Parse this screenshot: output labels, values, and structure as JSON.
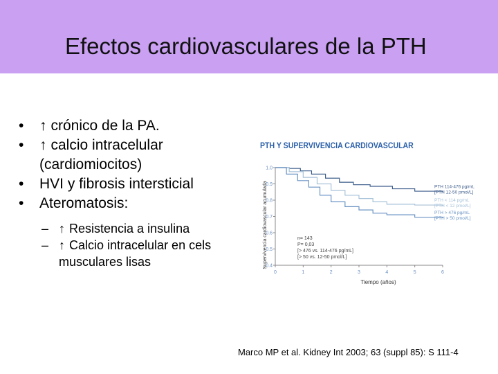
{
  "slide": {
    "title": "Efectos cardiovasculares de la PTH",
    "bullets": [
      {
        "icon": "up-arrow-icon",
        "text": "crónico de la PA."
      },
      {
        "icon": "up-arrow-icon",
        "text": "calcio intracelular (cardiomiocitos)"
      },
      {
        "icon": null,
        "text": "HVI y fibrosis intersticial"
      },
      {
        "icon": null,
        "text": "Ateromatosis:"
      }
    ],
    "subbullets": [
      {
        "icon": "up-arrow-icon",
        "text": "Resistencia a insulina"
      },
      {
        "icon": "up-arrow-icon",
        "text": "Calcio intracelular en cels musculares lisas"
      }
    ],
    "citation": "Marco MP et al. Kidney Int 2003; 63 (suppl 85): S 111-4",
    "bullet_glyph": "•",
    "dash_glyph": "–",
    "arrow_glyph": "↑"
  },
  "chart_data": {
    "type": "line",
    "title": "PTH Y SUPERVIVENCIA CARDIOVASCULAR",
    "xlabel": "Tiempo (años)",
    "ylabel": "Supervivencia cardiovascular acumulada",
    "xlim": [
      0,
      6
    ],
    "ylim": [
      0.4,
      1.0
    ],
    "x_ticks": [
      "0",
      "1",
      "2",
      "3",
      "4",
      "5",
      "6"
    ],
    "y_ticks": [
      "0.4",
      "0.5",
      "0.6",
      "0.7",
      "0.8",
      "0.9",
      "1.0"
    ],
    "colors": {
      "line1": "#3f5e8c",
      "line2": "#a7c2d8",
      "line3": "#6a93c4",
      "title": "#2b5fa8",
      "axis": "#888888"
    },
    "series": [
      {
        "name": "PTH 114-476 pg/mL [PTH 12-50 pmol/L]",
        "color": "#3f5e8c",
        "points": [
          [
            0,
            1.0
          ],
          [
            0.5,
            0.995
          ],
          [
            0.9,
            0.98
          ],
          [
            1.3,
            0.96
          ],
          [
            1.8,
            0.935
          ],
          [
            2.3,
            0.91
          ],
          [
            2.8,
            0.895
          ],
          [
            3.4,
            0.885
          ],
          [
            4.2,
            0.87
          ],
          [
            5.0,
            0.855
          ],
          [
            6.0,
            0.85
          ]
        ]
      },
      {
        "name": "PTH < 114 pg/mL [PTH < 12 pmol/L]",
        "color": "#a7c2d8",
        "points": [
          [
            0,
            1.0
          ],
          [
            0.5,
            0.975
          ],
          [
            1.0,
            0.94
          ],
          [
            1.5,
            0.9
          ],
          [
            2.0,
            0.86
          ],
          [
            2.5,
            0.83
          ],
          [
            3.0,
            0.81
          ],
          [
            3.5,
            0.79
          ],
          [
            4.0,
            0.775
          ],
          [
            5.0,
            0.77
          ],
          [
            6.0,
            0.765
          ]
        ]
      },
      {
        "name": "PTH > 476 pg/mL [PTH > 50 pmol/L]",
        "color": "#6a93c4",
        "points": [
          [
            0,
            1.0
          ],
          [
            0.4,
            0.96
          ],
          [
            0.8,
            0.92
          ],
          [
            1.2,
            0.88
          ],
          [
            1.6,
            0.83
          ],
          [
            2.0,
            0.79
          ],
          [
            2.5,
            0.76
          ],
          [
            3.0,
            0.74
          ],
          [
            3.5,
            0.72
          ],
          [
            4.0,
            0.71
          ],
          [
            5.0,
            0.695
          ],
          [
            6.0,
            0.69
          ]
        ]
      }
    ],
    "stats": [
      "n= 143",
      "P= 0,03",
      "[> 476 vs. 114-476 pg/mL]",
      "[> 50 vs. 12-50 pmol/L]"
    ]
  }
}
